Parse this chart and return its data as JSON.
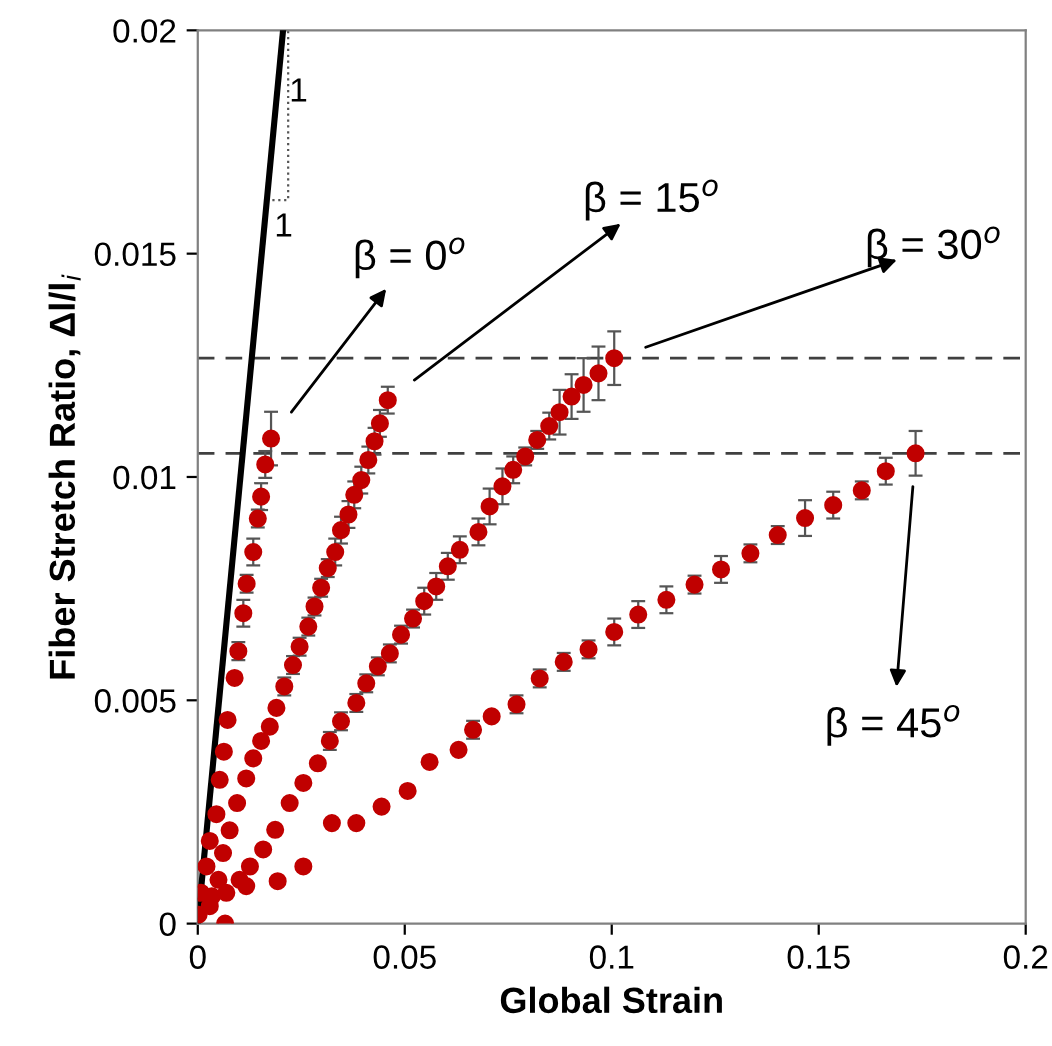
{
  "chart_data": {
    "type": "scatter",
    "xlabel": "Global Strain",
    "ylabel": "Fiber Stretch Ratio, Δl/l$_{i}$",
    "xlim": [
      0,
      0.2
    ],
    "ylim": [
      0,
      0.02
    ],
    "xticks": [
      0,
      0.05,
      0.1,
      0.15,
      0.2
    ],
    "yticks": [
      0,
      0.005,
      0.01,
      0.015,
      0.02
    ],
    "grid": false,
    "marker": "circle",
    "series": [
      {
        "type": "line",
        "color": "#000000",
        "marker": "none",
        "line_style": "solid",
        "x": [
          0,
          0.0206
        ],
        "values": [
          0,
          0.02
        ]
      },
      {
        "color": "#c00000",
        "x": [
          0.0002,
          0.0008,
          0.0021,
          0.0029,
          0.0045,
          0.0053,
          0.0063,
          0.0072,
          0.0089,
          0.0098,
          0.011,
          0.0118,
          0.0134,
          0.0145,
          0.0153,
          0.0163,
          0.0177
        ],
        "values": [
          0.0002,
          0.00069,
          0.00128,
          0.00185,
          0.00245,
          0.00322,
          0.00385,
          0.00456,
          0.0055,
          0.0061,
          0.00695,
          0.00761,
          0.00832,
          0.00907,
          0.00956,
          0.01028,
          0.01086
        ],
        "errors": [
          null,
          null,
          null,
          null,
          null,
          null,
          null,
          null,
          null,
          0.0002,
          0.0003,
          0.0002,
          0.0003,
          0.0002,
          0.0003,
          0.0003,
          0.0006
        ]
      },
      {
        "color": "#c00000",
        "x": [
          0.0034,
          0.005,
          0.0061,
          0.0077,
          0.0095,
          0.0117,
          0.0134,
          0.0153,
          0.0174,
          0.019,
          0.0209,
          0.023,
          0.0246,
          0.0267,
          0.0282,
          0.0298,
          0.0314,
          0.0332,
          0.0346,
          0.0364,
          0.0378,
          0.0395,
          0.0412,
          0.0427,
          0.044,
          0.0459
        ],
        "values": [
          0.00061,
          0.00098,
          0.00158,
          0.00209,
          0.0027,
          0.00325,
          0.0037,
          0.00409,
          0.00441,
          0.00483,
          0.00531,
          0.00579,
          0.0062,
          0.00665,
          0.0071,
          0.00752,
          0.00796,
          0.00832,
          0.00881,
          0.00916,
          0.0096,
          0.00993,
          0.01038,
          0.0108,
          0.0112,
          0.01172
        ],
        "errors": [
          null,
          null,
          null,
          null,
          null,
          null,
          null,
          null,
          null,
          null,
          0.0002,
          0.0002,
          0.0002,
          0.0002,
          0.0002,
          0.0002,
          0.0002,
          0.0003,
          0.0003,
          0.0003,
          0.0003,
          0.0003,
          0.0003,
          0.0003,
          0.0003,
          0.0003
        ]
      },
      {
        "color": "#c00000",
        "x": [
          0.0029,
          0.0069,
          0.0101,
          0.0126,
          0.0158,
          0.0187,
          0.0222,
          0.0255,
          0.029,
          0.0319,
          0.0346,
          0.0383,
          0.0407,
          0.0435,
          0.0464,
          0.0491,
          0.052,
          0.0547,
          0.0576,
          0.0604,
          0.0633,
          0.0678,
          0.0705,
          0.0736,
          0.0762,
          0.0791,
          0.082,
          0.0849,
          0.0874,
          0.0903,
          0.0932,
          0.0968,
          0.1006
        ],
        "values": [
          0.00039,
          0.00069,
          0.00098,
          0.00128,
          0.00166,
          0.0021,
          0.0027,
          0.00315,
          0.00359,
          0.00409,
          0.00453,
          0.00494,
          0.00538,
          0.00576,
          0.00605,
          0.00647,
          0.00683,
          0.00722,
          0.00755,
          0.008,
          0.00837,
          0.00877,
          0.00934,
          0.00979,
          0.01016,
          0.01046,
          0.01083,
          0.01114,
          0.01145,
          0.0118,
          0.01206,
          0.01232,
          0.01266
        ],
        "errors": [
          null,
          null,
          null,
          null,
          null,
          null,
          null,
          null,
          null,
          0.0002,
          0.0002,
          0.0002,
          0.0002,
          0.0002,
          0.0002,
          0.0002,
          0.0002,
          0.0003,
          0.0003,
          0.0003,
          0.0003,
          0.0003,
          0.0004,
          0.0004,
          0.0003,
          0.0002,
          0.0002,
          0.0003,
          0.0005,
          0.0005,
          0.0006,
          0.0006,
          0.0006
        ]
      },
      {
        "color": "#c00000",
        "x": [
          0.0066,
          0.0117,
          0.0193,
          0.0255,
          0.0324,
          0.0383,
          0.0444,
          0.0507,
          0.056,
          0.063,
          0.0665,
          0.071,
          0.077,
          0.0826,
          0.0884,
          0.0944,
          0.1006,
          0.1064,
          0.1132,
          0.12,
          0.1264,
          0.1335,
          0.1401,
          0.1467,
          0.1535,
          0.1604,
          0.1662,
          0.1734
        ],
        "values": [
          0,
          0.00084,
          0.00095,
          0.00128,
          0.00225,
          0.00225,
          0.00262,
          0.00297,
          0.00362,
          0.00389,
          0.00434,
          0.00464,
          0.00491,
          0.00549,
          0.00586,
          0.00614,
          0.00653,
          0.00692,
          0.00725,
          0.00759,
          0.00793,
          0.00829,
          0.0087,
          0.00908,
          0.00937,
          0.0097,
          0.01013,
          0.01053
        ],
        "errors": [
          null,
          null,
          null,
          null,
          null,
          null,
          null,
          null,
          null,
          null,
          0.0002,
          null,
          0.0002,
          0.0002,
          0.0002,
          0.0002,
          0.0003,
          0.0003,
          0.0003,
          0.0002,
          0.0003,
          0.0002,
          0.0002,
          0.0004,
          0.0003,
          0.0002,
          0.0003,
          0.0005
        ]
      }
    ],
    "ref_lines": [
      {
        "axis": "y",
        "value": 0.01266,
        "color": "#404040",
        "line_style": "dashed"
      },
      {
        "axis": "y",
        "value": 0.01053,
        "color": "#404040",
        "line_style": "dashed"
      }
    ],
    "annotations": [
      "1",
      {
        "text": "1",
        "x": 0.0167,
        "y": 0.0162
      },
      "β = 0$^{o}$",
      "β = 15$^{o}$",
      "β = 30$^{o}$",
      "β = 45$^{o}$"
    ]
  }
}
